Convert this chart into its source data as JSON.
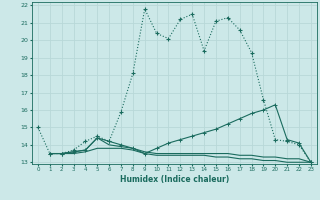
{
  "xlabel": "Humidex (Indice chaleur)",
  "x": [
    0,
    1,
    2,
    3,
    4,
    5,
    6,
    7,
    8,
    9,
    10,
    11,
    12,
    13,
    14,
    15,
    16,
    17,
    18,
    19,
    20,
    21,
    22,
    23
  ],
  "line1_y": [
    15.0,
    13.5,
    13.5,
    13.7,
    14.2,
    14.5,
    14.2,
    15.9,
    18.1,
    21.8,
    20.4,
    20.1,
    21.2,
    21.5,
    19.4,
    21.1,
    21.3,
    20.6,
    19.3,
    16.6,
    14.3,
    14.2,
    14.0,
    13.0
  ],
  "line2_x": [
    1,
    2,
    3,
    4,
    5,
    6,
    7,
    8,
    9,
    10,
    11,
    12,
    13,
    14,
    15,
    16,
    17,
    18,
    19,
    20,
    21,
    22,
    23
  ],
  "line2_y": [
    13.5,
    13.5,
    13.6,
    13.7,
    14.4,
    14.2,
    14.0,
    13.8,
    13.5,
    13.8,
    14.1,
    14.3,
    14.5,
    14.7,
    14.9,
    15.2,
    15.5,
    15.8,
    16.0,
    16.3,
    14.3,
    14.1,
    13.0
  ],
  "line3_x": [
    1,
    2,
    3,
    4,
    5,
    6,
    7,
    8,
    9,
    10,
    11,
    12,
    13,
    14,
    15,
    16,
    17,
    18,
    19,
    20,
    21,
    22,
    23
  ],
  "line3_y": [
    13.5,
    13.5,
    13.5,
    13.6,
    13.8,
    13.8,
    13.8,
    13.7,
    13.5,
    13.4,
    13.4,
    13.4,
    13.4,
    13.4,
    13.3,
    13.3,
    13.2,
    13.2,
    13.1,
    13.1,
    13.0,
    13.0,
    13.0
  ],
  "line4_x": [
    1,
    2,
    3,
    4,
    5,
    6,
    7,
    8,
    9,
    10,
    11,
    12,
    13,
    14,
    15,
    16,
    17,
    18,
    19,
    20,
    21,
    22,
    23
  ],
  "line4_y": [
    13.5,
    13.5,
    13.6,
    13.7,
    14.4,
    14.0,
    13.9,
    13.8,
    13.6,
    13.5,
    13.5,
    13.5,
    13.5,
    13.5,
    13.5,
    13.5,
    13.4,
    13.4,
    13.3,
    13.3,
    13.2,
    13.2,
    13.0
  ],
  "ylim": [
    13,
    22
  ],
  "xlim": [
    -0.5,
    23.5
  ],
  "bg_color": "#cce8e8",
  "line_color": "#1a6b5e",
  "grid_color": "#b8d8d8",
  "yticks": [
    13,
    14,
    15,
    16,
    17,
    18,
    19,
    20,
    21,
    22
  ],
  "xticks": [
    0,
    1,
    2,
    3,
    4,
    5,
    6,
    7,
    8,
    9,
    10,
    11,
    12,
    13,
    14,
    15,
    16,
    17,
    18,
    19,
    20,
    21,
    22,
    23
  ]
}
